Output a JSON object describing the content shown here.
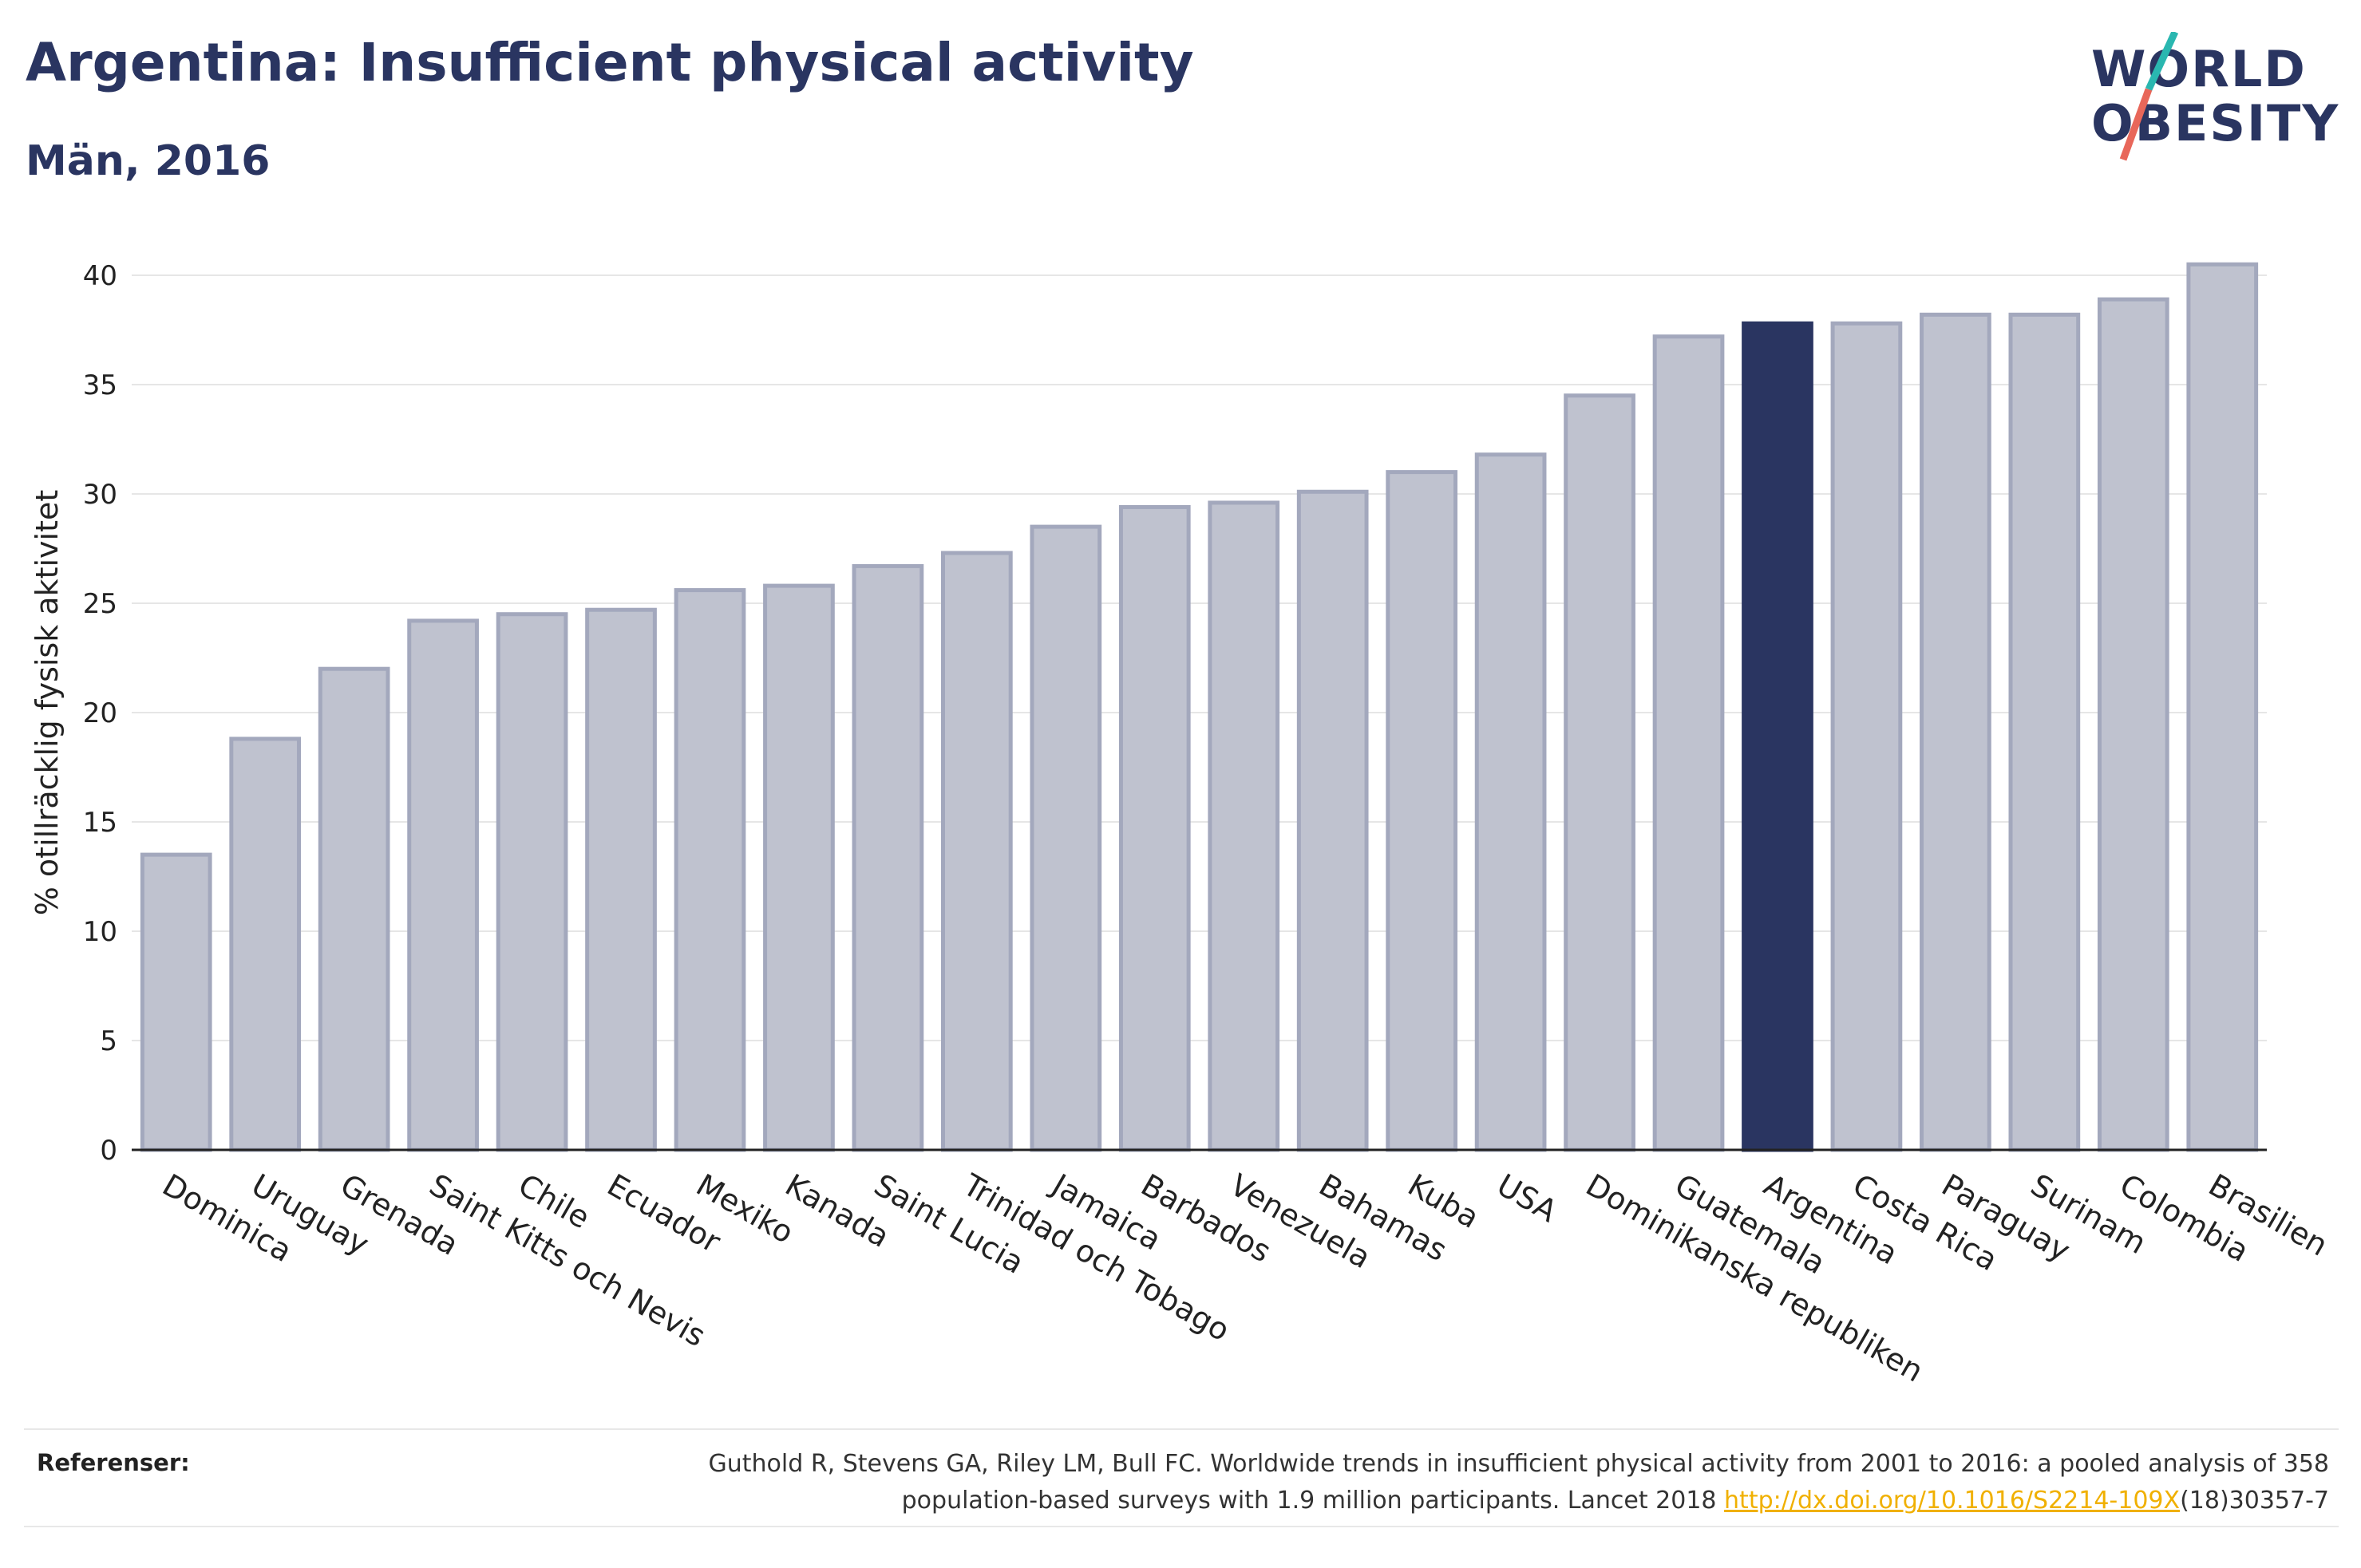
{
  "header": {
    "title": "Argentina: Insufficient physical activity",
    "subtitle": "Män, 2016"
  },
  "logo": {
    "line1": "WORLD",
    "line2": "OBESITY",
    "text_color": "#2a3561",
    "slash_colors": [
      "#2ab7b0",
      "#e8675a"
    ]
  },
  "chart_data": {
    "type": "bar",
    "title": "",
    "xlabel": "",
    "ylabel": "% otillräcklig fysisk aktivitet",
    "ylim": [
      0,
      42
    ],
    "yticks": [
      0,
      5,
      10,
      15,
      20,
      25,
      30,
      35,
      40
    ],
    "grid": true,
    "categories": [
      "Dominica",
      "Uruguay",
      "Grenada",
      "Saint Kitts och Nevis",
      "Chile",
      "Ecuador",
      "Mexiko",
      "Kanada",
      "Saint Lucia",
      "Trinidad och Tobago",
      "Jamaica",
      "Barbados",
      "Venezuela",
      "Bahamas",
      "Kuba",
      "USA",
      "Dominikanska republiken",
      "Guatemala",
      "Argentina",
      "Costa Rica",
      "Paraguay",
      "Surinam",
      "Colombia",
      "Brasilien"
    ],
    "values": [
      13.5,
      18.8,
      22.0,
      24.2,
      24.5,
      24.7,
      25.6,
      25.8,
      26.7,
      27.3,
      28.5,
      29.4,
      29.6,
      30.1,
      31.0,
      31.8,
      34.5,
      37.2,
      37.8,
      37.8,
      38.2,
      38.2,
      38.9,
      40.5
    ],
    "highlight": "Argentina",
    "bar_color": "#bfc2cf",
    "bar_edge_color": "#a3a8bd",
    "highlight_color": "#2a3561"
  },
  "footer": {
    "ref_label": "Referenser:",
    "ref_text_1": "Guthold R, Stevens GA, Riley LM, Bull FC. Worldwide trends in insufficient physical activity from 2001 to 2016: a pooled analysis of 358 population-based surveys with 1.9 million participants. Lancet 2018 ",
    "ref_link": "http://dx.doi.org/10.1016/S2214-109X",
    "ref_text_2": "(18)30357-7"
  }
}
